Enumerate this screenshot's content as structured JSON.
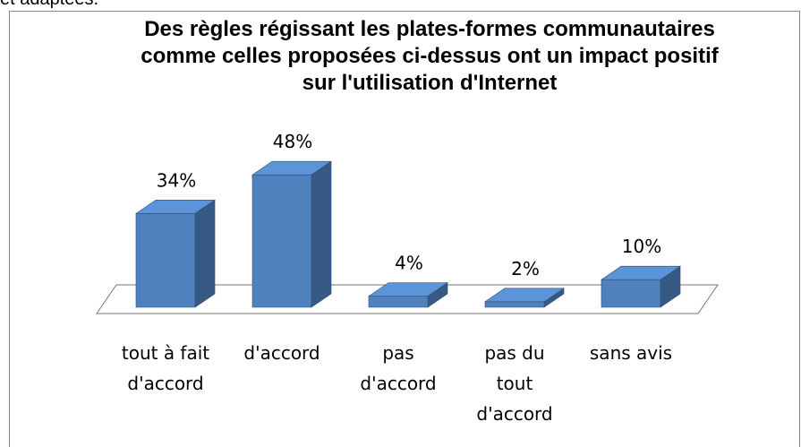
{
  "context_text": "et adaptées.",
  "chart_data": {
    "type": "bar3d",
    "title": "Des règles régissant les plates-formes communautaires comme celles proposées ci-dessus ont un impact positif sur l'utilisation d'Internet",
    "categories": [
      "tout à fait d'accord",
      "d'accord",
      "pas d'accord",
      "pas du tout d'accord",
      "sans avis"
    ],
    "values": [
      34,
      48,
      4,
      2,
      10
    ],
    "value_labels": [
      "34%",
      "48%",
      "4%",
      "2%",
      "10%"
    ],
    "color": "#4f81bd"
  }
}
